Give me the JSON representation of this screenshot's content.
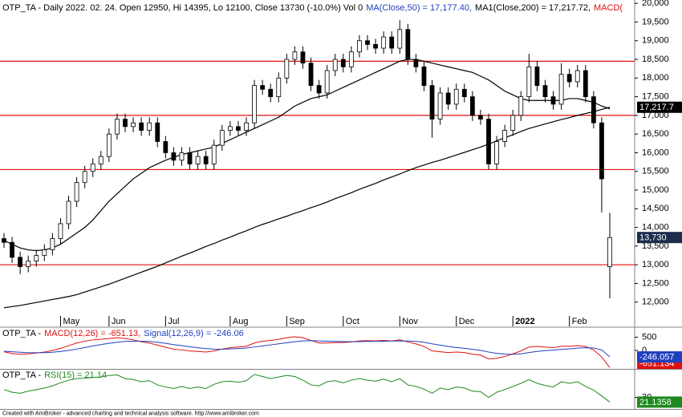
{
  "chart_data": [
    {
      "type": "candlestick",
      "title_parts": [
        {
          "text": "OTP_TA - Daily 2022. 02. 24. Open 12950, Hi 14395, Lo 12100, Close 13730 (-10.0%) Vol 0",
          "color": "#000000"
        },
        {
          "text": "MA(Close,50) = 17,177.40,",
          "color": "#1f3fbf"
        },
        {
          "text": "MA1(Close,200) = 17,217.72,",
          "color": "#000000"
        },
        {
          "text": "MACD(",
          "color": "#e01010"
        }
      ],
      "categories": [
        null,
        null,
        null,
        null,
        null,
        null,
        null,
        "May",
        null,
        null,
        null,
        null,
        null,
        "Jun",
        null,
        null,
        null,
        null,
        null,
        null,
        "Jul",
        null,
        null,
        null,
        null,
        null,
        null,
        null,
        "Aug",
        null,
        null,
        null,
        null,
        null,
        null,
        "Sep",
        null,
        null,
        null,
        null,
        null,
        null,
        "Oct",
        null,
        null,
        null,
        null,
        null,
        null,
        "Nov",
        null,
        null,
        null,
        null,
        null,
        null,
        "Dec",
        null,
        null,
        null,
        null,
        null,
        null,
        "2022",
        null,
        null,
        null,
        null,
        null,
        null,
        "Feb",
        null,
        null,
        null,
        null,
        null
      ],
      "open": [
        13700,
        13600,
        13200,
        12950,
        13100,
        13250,
        13400,
        13700,
        14100,
        14700,
        15200,
        15500,
        15700,
        15900,
        16500,
        16900,
        16700,
        16800,
        16600,
        16800,
        16300,
        16000,
        15800,
        16000,
        15700,
        15900,
        15700,
        16200,
        16600,
        16700,
        16600,
        16800,
        17800,
        17700,
        17500,
        18000,
        18500,
        18700,
        18400,
        17800,
        17600,
        18200,
        18500,
        18300,
        18700,
        19000,
        18900,
        18800,
        19100,
        18800,
        19300,
        18500,
        18300,
        17800,
        16900,
        17600,
        17300,
        17700,
        17500,
        17000,
        16900,
        15700,
        16300,
        16600,
        17000,
        17500,
        18300,
        17800,
        17500,
        17300,
        18100,
        17900,
        18200,
        17500,
        16800,
        12950
      ],
      "high": [
        13850,
        13750,
        13350,
        13250,
        13400,
        13550,
        13850,
        14250,
        14850,
        15350,
        15650,
        15850,
        16050,
        16650,
        17050,
        17050,
        16950,
        16950,
        16950,
        16950,
        16450,
        16150,
        16150,
        16150,
        16050,
        16050,
        16350,
        16750,
        16850,
        16850,
        16950,
        17950,
        17950,
        17850,
        18150,
        18650,
        18850,
        18850,
        18550,
        17950,
        18350,
        18650,
        18650,
        18850,
        19150,
        19150,
        19050,
        19250,
        19250,
        19550,
        19450,
        18650,
        18450,
        17950,
        17750,
        17750,
        17850,
        17850,
        17650,
        17150,
        17050,
        16450,
        16750,
        17150,
        17650,
        18650,
        18450,
        17950,
        17650,
        18400,
        18250,
        18350,
        18350,
        17650,
        16950,
        14395
      ],
      "low": [
        13450,
        13050,
        12750,
        12800,
        12950,
        13100,
        13250,
        13550,
        13950,
        14550,
        15050,
        15350,
        15550,
        15750,
        16350,
        16550,
        16550,
        16450,
        16450,
        16150,
        15850,
        15650,
        15650,
        15550,
        15550,
        15550,
        15550,
        16050,
        16450,
        16450,
        16450,
        16650,
        17550,
        17350,
        17350,
        17850,
        18350,
        18250,
        17650,
        17450,
        17450,
        18050,
        18150,
        18150,
        18550,
        18750,
        18650,
        18650,
        18650,
        18650,
        18350,
        18150,
        17650,
        16400,
        16750,
        17150,
        17150,
        17350,
        16850,
        16750,
        15550,
        15550,
        16150,
        16450,
        16850,
        17350,
        17650,
        17350,
        17150,
        17150,
        17750,
        17750,
        17350,
        16650,
        14400,
        12100
      ],
      "close": [
        13600,
        13200,
        12950,
        13100,
        13250,
        13400,
        13700,
        14100,
        14700,
        15200,
        15500,
        15700,
        15900,
        16500,
        16900,
        16700,
        16800,
        16600,
        16800,
        16300,
        16000,
        15800,
        16000,
        15700,
        15900,
        15700,
        16200,
        16600,
        16700,
        16600,
        16800,
        17800,
        17700,
        17500,
        18000,
        18500,
        18700,
        18400,
        17800,
        17600,
        18200,
        18500,
        18300,
        18700,
        19000,
        18900,
        18800,
        19100,
        18800,
        19300,
        18500,
        18300,
        17800,
        16900,
        17600,
        17300,
        17700,
        17500,
        17000,
        16900,
        15700,
        16300,
        16600,
        17000,
        17500,
        18300,
        17800,
        17500,
        17300,
        18100,
        17900,
        18200,
        17500,
        16800,
        15300,
        13730
      ],
      "close_last_label": "13,730",
      "up_color": "#ffffff",
      "down_color": "#000000",
      "candle_edge": "#000000",
      "label_box_color": "#1c2c4c",
      "overlays": [
        {
          "color": "#000000",
          "values": [
            13650,
            13550,
            13450,
            13400,
            13380,
            13400,
            13450,
            13550,
            13700,
            13850,
            14000,
            14200,
            14450,
            14700,
            14900,
            15100,
            15300,
            15450,
            15600,
            15700,
            15800,
            15880,
            15950,
            16000,
            16050,
            16100,
            16150,
            16250,
            16350,
            16450,
            16550,
            16650,
            16750,
            16850,
            16950,
            17100,
            17250,
            17350,
            17450,
            17500,
            17550,
            17650,
            17750,
            17850,
            17950,
            18050,
            18150,
            18250,
            18350,
            18450,
            18500,
            18500,
            18450,
            18400,
            18350,
            18300,
            18250,
            18200,
            18150,
            18050,
            17950,
            17800,
            17650,
            17550,
            17450,
            17400,
            17400,
            17400,
            17400,
            17400,
            17450,
            17450,
            17400,
            17350,
            17250,
            17177.4
          ]
        },
        {
          "color": "#000000",
          "last_label": "17,217.7",
          "values": [
            11850,
            11880,
            11910,
            11950,
            11990,
            12030,
            12070,
            12110,
            12150,
            12200,
            12270,
            12340,
            12410,
            12480,
            12560,
            12640,
            12720,
            12800,
            12880,
            12960,
            13050,
            13140,
            13230,
            13310,
            13400,
            13490,
            13570,
            13660,
            13740,
            13830,
            13910,
            14000,
            14080,
            14150,
            14230,
            14300,
            14380,
            14450,
            14530,
            14600,
            14680,
            14770,
            14850,
            14930,
            15020,
            15100,
            15180,
            15270,
            15350,
            15430,
            15520,
            15600,
            15670,
            15740,
            15800,
            15870,
            15940,
            16010,
            16080,
            16150,
            16230,
            16320,
            16400,
            16480,
            16570,
            16650,
            16710,
            16770,
            16830,
            16890,
            16940,
            17000,
            17050,
            17100,
            17160,
            17217.72
          ]
        }
      ],
      "hlines": [
        18450,
        17000,
        15550,
        13000
      ],
      "hline_color": "#e01010",
      "ylim": [
        11350,
        20090
      ],
      "yticks": [
        {
          "value": 12000,
          "label": "12,000"
        },
        {
          "value": 12500,
          "label": "12,500"
        },
        {
          "value": 13000,
          "label": "13,000"
        },
        {
          "value": 13500,
          "label": "13,500"
        },
        {
          "value": 14000,
          "label": "14,000"
        },
        {
          "value": 14500,
          "label": "14,500"
        },
        {
          "value": 15000,
          "label": "15,000"
        },
        {
          "value": 15500,
          "label": "15,500"
        },
        {
          "value": 16000,
          "label": "16,000"
        },
        {
          "value": 16500,
          "label": "16,500"
        },
        {
          "value": 17000,
          "label": "17,000"
        },
        {
          "value": 17500,
          "label": "17,500"
        },
        {
          "value": 18000,
          "label": "18,000"
        },
        {
          "value": 18500,
          "label": "18,500"
        },
        {
          "value": 19000,
          "label": "19,000"
        },
        {
          "value": 19500,
          "label": "19,500"
        },
        {
          "value": 20000,
          "label": "20,000"
        }
      ]
    },
    {
      "type": "line",
      "title_parts": [
        {
          "text": "OTP_TA -",
          "color": "#000000"
        },
        {
          "text": "MACD(12,26) = -651.13,",
          "color": "#e01010"
        },
        {
          "text": "Signal(12,26,9) = -246.06",
          "color": "#1f3fbf"
        }
      ],
      "series": [
        {
          "color": "#e01010",
          "values": [
            -50,
            -120,
            -150,
            -130,
            -100,
            -60,
            0,
            80,
            180,
            280,
            350,
            400,
            420,
            450,
            480,
            450,
            400,
            330,
            280,
            200,
            120,
            50,
            20,
            -20,
            -40,
            -60,
            -20,
            50,
            100,
            130,
            160,
            280,
            350,
            380,
            420,
            480,
            520,
            480,
            380,
            280,
            280,
            300,
            300,
            320,
            360,
            370,
            360,
            380,
            360,
            400,
            320,
            250,
            150,
            -20,
            -50,
            -80,
            -60,
            -80,
            -140,
            -180,
            -320,
            -300,
            -230,
            -130,
            -20,
            130,
            150,
            130,
            100,
            160,
            160,
            180,
            150,
            20,
            -250,
            -651.134
          ]
        },
        {
          "color": "#1f3fbf",
          "values": [
            -30,
            -50,
            -70,
            -85,
            -90,
            -85,
            -70,
            -40,
            0,
            50,
            110,
            170,
            220,
            270,
            310,
            340,
            350,
            350,
            340,
            310,
            270,
            220,
            180,
            140,
            100,
            70,
            50,
            45,
            55,
            70,
            90,
            130,
            170,
            210,
            250,
            290,
            330,
            360,
            370,
            360,
            350,
            340,
            335,
            330,
            335,
            340,
            345,
            350,
            355,
            360,
            355,
            340,
            310,
            250,
            200,
            150,
            110,
            80,
            40,
            0,
            -60,
            -110,
            -140,
            -150,
            -130,
            -80,
            -40,
            -10,
            10,
            40,
            60,
            85,
            100,
            90,
            20,
            -246.057
          ]
        }
      ],
      "ylim": [
        -700,
        850
      ],
      "yticks": [
        500,
        0
      ]
    },
    {
      "type": "line",
      "title_parts": [
        {
          "text": "OTP_TA -",
          "color": "#000000"
        },
        {
          "text": "RSI(15) = 21.14",
          "color": "#1e8a1e"
        }
      ],
      "series": [
        {
          "color": "#1e8a1e",
          "values": [
            45,
            40,
            38,
            42,
            45,
            48,
            52,
            58,
            63,
            66,
            67,
            68,
            69,
            72,
            73,
            66,
            64,
            60,
            62,
            54,
            50,
            47,
            51,
            47,
            50,
            47,
            55,
            60,
            61,
            59,
            62,
            74,
            70,
            66,
            69,
            72,
            70,
            63,
            54,
            52,
            60,
            62,
            58,
            63,
            66,
            63,
            61,
            65,
            60,
            66,
            54,
            51,
            46,
            38,
            48,
            45,
            50,
            48,
            42,
            41,
            30,
            40,
            45,
            51,
            57,
            64,
            57,
            53,
            50,
            60,
            57,
            60,
            51,
            44,
            33,
            21.1358
          ]
        }
      ],
      "ylim": [
        8,
        83
      ],
      "yticks": [
        30
      ]
    }
  ],
  "footer": "Created with AmiBroker - advanced charting and technical analysis software. http://www.amibroker.com"
}
